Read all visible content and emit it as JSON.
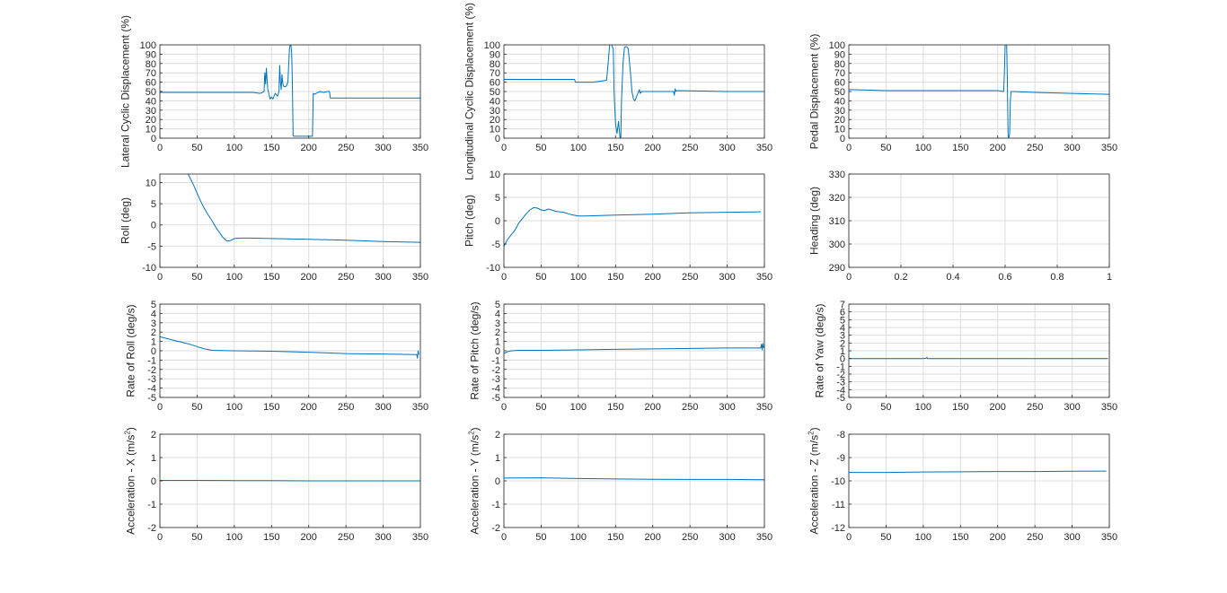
{
  "colors": {
    "trace": "#0072bd",
    "grid": "#dcdcdc",
    "axis": "#262626"
  },
  "chart_data": [
    {
      "type": "line",
      "ylabel": "Lateral Cyclic Displacement (%)",
      "xlim": [
        0,
        350
      ],
      "ylim": [
        0,
        100
      ],
      "xticks": [
        0,
        50,
        100,
        150,
        200,
        250,
        300,
        350
      ],
      "yticks": [
        0,
        10,
        20,
        30,
        40,
        50,
        60,
        70,
        80,
        90,
        100
      ],
      "series": [
        {
          "x": [
            0,
            60,
            125,
            135,
            140,
            141,
            142,
            143,
            145,
            147,
            148,
            150,
            152,
            155,
            158,
            160,
            161,
            162,
            163,
            164,
            165,
            166,
            168,
            170,
            172,
            174,
            175,
            176,
            177,
            178,
            179,
            180,
            185,
            190,
            200,
            205,
            206,
            208,
            210,
            215,
            220,
            225,
            228,
            229,
            230,
            300,
            350
          ],
          "y": [
            49,
            49,
            49,
            48,
            50,
            70,
            58,
            75,
            52,
            46,
            42,
            44,
            42,
            48,
            45,
            50,
            78,
            60,
            52,
            68,
            60,
            56,
            55,
            56,
            60,
            95,
            100,
            100,
            92,
            60,
            3,
            2,
            2,
            2,
            2,
            2,
            48,
            47,
            48,
            50,
            49,
            50,
            50,
            43,
            43,
            43,
            43
          ]
        }
      ]
    },
    {
      "type": "line",
      "ylabel": "Longitudinal Cyclic Displacement (%)",
      "xlim": [
        0,
        350
      ],
      "ylim": [
        0,
        100
      ],
      "xticks": [
        0,
        50,
        100,
        150,
        200,
        250,
        300,
        350
      ],
      "yticks": [
        0,
        10,
        20,
        30,
        40,
        50,
        60,
        70,
        80,
        90,
        100
      ],
      "series": [
        {
          "x": [
            0,
            30,
            60,
            95,
            96,
            120,
            138,
            140,
            142,
            145,
            147,
            148,
            150,
            152,
            154,
            156,
            157,
            158,
            160,
            162,
            163,
            165,
            167,
            170,
            172,
            174,
            176,
            178,
            180,
            182,
            183,
            185,
            200,
            228,
            229,
            230,
            231,
            232,
            300,
            350
          ],
          "y": [
            63,
            63,
            63,
            63,
            60,
            60,
            62,
            80,
            100,
            100,
            95,
            50,
            15,
            5,
            18,
            0,
            0,
            40,
            80,
            97,
            98,
            98,
            96,
            70,
            50,
            42,
            40,
            44,
            48,
            52,
            48,
            50,
            50,
            50,
            46,
            53,
            50,
            51,
            50,
            50
          ]
        }
      ]
    },
    {
      "type": "line",
      "ylabel": "Pedal Displacement (%)",
      "xlim": [
        0,
        350
      ],
      "ylim": [
        0,
        100
      ],
      "xticks": [
        0,
        50,
        100,
        150,
        200,
        250,
        300,
        350
      ],
      "yticks": [
        0,
        10,
        20,
        30,
        40,
        50,
        60,
        70,
        80,
        90,
        100
      ],
      "series": [
        {
          "x": [
            0,
            50,
            100,
            150,
            200,
            208,
            209,
            210,
            211,
            212,
            213,
            214,
            215,
            216,
            217,
            218,
            220,
            250,
            300,
            350
          ],
          "y": [
            52,
            51,
            51,
            51,
            51,
            50,
            70,
            100,
            100,
            100,
            60,
            2,
            0,
            5,
            40,
            50,
            50,
            49,
            48,
            47
          ]
        }
      ]
    },
    {
      "type": "line",
      "ylabel": "Roll (deg)",
      "xlim": [
        0,
        350
      ],
      "ylim": [
        -10,
        12
      ],
      "xticks": [
        0,
        50,
        100,
        150,
        200,
        250,
        300,
        350
      ],
      "yticks": [
        -10,
        -5,
        0,
        5,
        10
      ],
      "series": [
        {
          "x": [
            38,
            45,
            50,
            55,
            60,
            65,
            70,
            75,
            80,
            85,
            90,
            95,
            100,
            110,
            120,
            150,
            200,
            250,
            300,
            350
          ],
          "y": [
            12,
            9.5,
            7.5,
            5.5,
            3.8,
            2.3,
            1,
            -0.5,
            -1.8,
            -3,
            -3.8,
            -3.7,
            -3.2,
            -3.1,
            -3.1,
            -3.2,
            -3.4,
            -3.6,
            -3.9,
            -4.1
          ]
        }
      ]
    },
    {
      "type": "line",
      "ylabel": "Pitch (deg)",
      "xlim": [
        0,
        350
      ],
      "ylim": [
        -10,
        10
      ],
      "xticks": [
        0,
        50,
        100,
        150,
        200,
        250,
        300,
        350
      ],
      "yticks": [
        -10,
        -5,
        0,
        5,
        10
      ],
      "series": [
        {
          "x": [
            0,
            5,
            10,
            15,
            20,
            25,
            30,
            35,
            40,
            45,
            50,
            55,
            60,
            70,
            80,
            90,
            100,
            110,
            130,
            150,
            200,
            250,
            300,
            345
          ],
          "y": [
            -5.5,
            -4,
            -3,
            -2,
            -0.5,
            0.5,
            1.5,
            2.3,
            2.8,
            2.7,
            2.3,
            2.2,
            2.5,
            2,
            1.8,
            1.3,
            1,
            1,
            1.1,
            1.2,
            1.4,
            1.7,
            1.8,
            1.9
          ]
        }
      ]
    },
    {
      "type": "line",
      "ylabel": "Heading (deg)",
      "xlim": [
        0,
        1
      ],
      "ylim": [
        290,
        330
      ],
      "xticks": [
        0,
        0.2,
        0.4,
        0.6,
        0.8,
        1
      ],
      "yticks": [
        290,
        300,
        310,
        320,
        330
      ],
      "series": []
    },
    {
      "type": "line",
      "ylabel": "Rate of Roll (deg/s)",
      "xlim": [
        0,
        350
      ],
      "ylim": [
        -5,
        5
      ],
      "xticks": [
        0,
        50,
        100,
        150,
        200,
        250,
        300,
        350
      ],
      "yticks": [
        -5,
        -4,
        -3,
        -2,
        -1,
        0,
        1,
        2,
        3,
        4,
        5
      ],
      "series": [
        {
          "x": [
            0,
            10,
            20,
            30,
            40,
            50,
            60,
            70,
            100,
            150,
            200,
            250,
            300,
            345,
            346,
            347,
            348
          ],
          "y": [
            1.5,
            1.3,
            1.1,
            0.9,
            0.7,
            0.45,
            0.2,
            0.05,
            0,
            -0.05,
            -0.15,
            -0.3,
            -0.35,
            -0.4,
            -0.8,
            0,
            -0.4
          ]
        }
      ]
    },
    {
      "type": "line",
      "ylabel": "Rate of Pitch (deg/s)",
      "xlim": [
        0,
        350
      ],
      "ylim": [
        -5,
        5
      ],
      "xticks": [
        0,
        50,
        100,
        150,
        200,
        250,
        300,
        350
      ],
      "yticks": [
        -5,
        -4,
        -3,
        -2,
        -1,
        0,
        1,
        2,
        3,
        4,
        5
      ],
      "series": [
        {
          "x": [
            0,
            5,
            10,
            20,
            50,
            100,
            150,
            200,
            250,
            300,
            345,
            346,
            347,
            348,
            349
          ],
          "y": [
            -0.3,
            -0.1,
            0,
            0.05,
            0.05,
            0.1,
            0.15,
            0.2,
            0.25,
            0.3,
            0.3,
            0.7,
            0.1,
            0.8,
            0.3
          ]
        }
      ]
    },
    {
      "type": "line",
      "ylabel": "Rate of Yaw (deg/s)",
      "xlim": [
        0,
        350
      ],
      "ylim": [
        -5,
        7
      ],
      "xticks": [
        0,
        50,
        100,
        150,
        200,
        250,
        300,
        350
      ],
      "yticks": [
        -5,
        -4,
        -3,
        -2,
        -1,
        0,
        1,
        2,
        3,
        4,
        5,
        6,
        7
      ],
      "series": [
        {
          "x": [
            0,
            50,
            100,
            104,
            105,
            106,
            150,
            200,
            250,
            300,
            348
          ],
          "y": [
            0,
            0,
            0,
            0.05,
            0.15,
            0,
            0,
            0,
            0,
            0,
            0
          ]
        }
      ]
    },
    {
      "type": "line",
      "ylabel": "Acceleration - X (m/s²)",
      "ylabel_base": "Acceleration - X (m/s",
      "ylabel_sup": "2",
      "ylabel_end": ")",
      "xlim": [
        0,
        350
      ],
      "ylim": [
        -2,
        2
      ],
      "xticks": [
        0,
        50,
        100,
        150,
        200,
        250,
        300,
        350
      ],
      "yticks": [
        -2,
        -1,
        0,
        1,
        2
      ],
      "series": [
        {
          "x": [
            0,
            50,
            100,
            150,
            200,
            250,
            300,
            350
          ],
          "y": [
            0.02,
            0.02,
            0.01,
            0.01,
            0.0,
            0.0,
            0.0,
            0.0
          ]
        }
      ]
    },
    {
      "type": "line",
      "ylabel": "Acceleration - Y (m/s²)",
      "ylabel_base": "Acceleration - Y (m/s",
      "ylabel_sup": "2",
      "ylabel_end": ")",
      "xlim": [
        0,
        350
      ],
      "ylim": [
        -2,
        2
      ],
      "xticks": [
        0,
        50,
        100,
        150,
        200,
        250,
        300,
        350
      ],
      "yticks": [
        -2,
        -1,
        0,
        1,
        2
      ],
      "series": [
        {
          "x": [
            0,
            50,
            100,
            150,
            200,
            250,
            300,
            350
          ],
          "y": [
            0.12,
            0.13,
            0.1,
            0.08,
            0.07,
            0.06,
            0.06,
            0.05
          ]
        }
      ]
    },
    {
      "type": "line",
      "ylabel": "Acceleration - Z (m/s²)",
      "ylabel_base": "Acceleration - Z (m/s",
      "ylabel_sup": "2",
      "ylabel_end": ")",
      "xlim": [
        0,
        350
      ],
      "ylim": [
        -12,
        -8
      ],
      "xticks": [
        0,
        50,
        100,
        150,
        200,
        250,
        300,
        350
      ],
      "yticks": [
        -12,
        -11,
        -10,
        -9,
        -8
      ],
      "series": [
        {
          "x": [
            0,
            50,
            100,
            150,
            200,
            250,
            300,
            346
          ],
          "y": [
            -9.64,
            -9.64,
            -9.62,
            -9.61,
            -9.6,
            -9.6,
            -9.59,
            -9.58
          ]
        }
      ]
    }
  ]
}
